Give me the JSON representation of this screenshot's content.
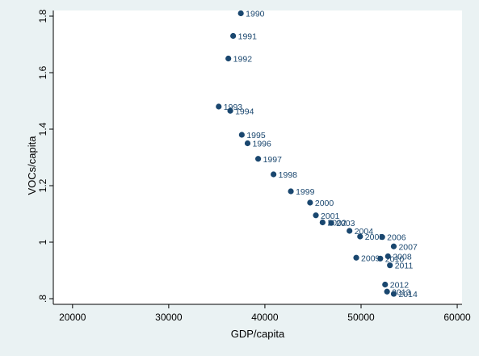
{
  "chart_data": {
    "type": "scatter",
    "xlabel": "GDP/capita",
    "ylabel": "VOCs/capita",
    "xlim": [
      18000,
      60500
    ],
    "ylim": [
      0.78,
      1.82
    ],
    "xticks": [
      20000,
      30000,
      40000,
      50000,
      60000
    ],
    "yticks": [
      0.8,
      1,
      1.2,
      1.4,
      1.6,
      1.8
    ],
    "ytick_labels": [
      ".8",
      "1",
      "1.2",
      "1.4",
      "1.6",
      "1.8"
    ],
    "grid": false,
    "colors": {
      "marker": "#1a476f",
      "plot_bg": "#ffffff",
      "page_bg": "#eaf2f3"
    },
    "points": [
      {
        "label": "1990",
        "x": 37500,
        "y": 1.81
      },
      {
        "label": "1991",
        "x": 36700,
        "y": 1.73
      },
      {
        "label": "1992",
        "x": 36200,
        "y": 1.65
      },
      {
        "label": "1993",
        "x": 35200,
        "y": 1.48
      },
      {
        "label": "1994",
        "x": 36400,
        "y": 1.465
      },
      {
        "label": "1995",
        "x": 37600,
        "y": 1.38
      },
      {
        "label": "1996",
        "x": 38200,
        "y": 1.35
      },
      {
        "label": "1997",
        "x": 39300,
        "y": 1.295
      },
      {
        "label": "1998",
        "x": 40900,
        "y": 1.24
      },
      {
        "label": "1999",
        "x": 42700,
        "y": 1.18
      },
      {
        "label": "2000",
        "x": 44700,
        "y": 1.14
      },
      {
        "label": "2001",
        "x": 45300,
        "y": 1.095
      },
      {
        "label": "2002",
        "x": 46000,
        "y": 1.07
      },
      {
        "label": "2003",
        "x": 46900,
        "y": 1.068
      },
      {
        "label": "2004",
        "x": 48800,
        "y": 1.04
      },
      {
        "label": "2005",
        "x": 49900,
        "y": 1.02
      },
      {
        "label": "2006",
        "x": 52200,
        "y": 1.018
      },
      {
        "label": "2007",
        "x": 53400,
        "y": 0.985
      },
      {
        "label": "2008",
        "x": 52800,
        "y": 0.95
      },
      {
        "label": "2009",
        "x": 49500,
        "y": 0.945
      },
      {
        "label": "2010",
        "x": 52000,
        "y": 0.942
      },
      {
        "label": "2011",
        "x": 53000,
        "y": 0.918
      },
      {
        "label": "2012",
        "x": 52500,
        "y": 0.85
      },
      {
        "label": "2013",
        "x": 52700,
        "y": 0.825
      },
      {
        "label": "2014",
        "x": 53400,
        "y": 0.817
      }
    ]
  }
}
